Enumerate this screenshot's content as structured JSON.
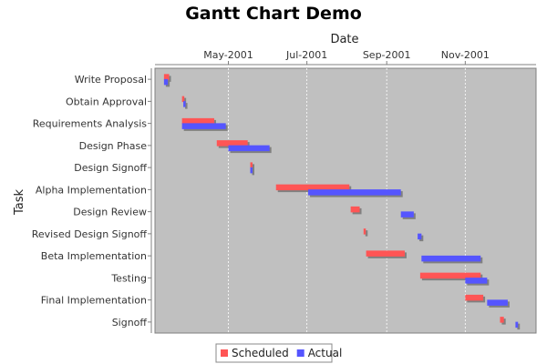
{
  "chart_data": {
    "type": "gantt",
    "title": "Gantt Chart Demo",
    "xlabel": "Date",
    "ylabel": "Task",
    "x_ticks": [
      "2001-05-01",
      "2001-07-01",
      "2001-09-01",
      "2001-11-01"
    ],
    "x_tick_labels": [
      "May-2001",
      "Jul-2001",
      "Sep-2001",
      "Nov-2001"
    ],
    "xlim": [
      "2001-03-05",
      "2001-12-26"
    ],
    "grid": true,
    "legend_position": "bottom",
    "colors": {
      "plot_background": "#c0c0c0",
      "gridline": "#ffffff",
      "scheduled": "#ff5555",
      "actual": "#5555ff",
      "shadow": "#808080"
    },
    "tasks": [
      "Write Proposal",
      "Obtain Approval",
      "Requirements Analysis",
      "Design Phase",
      "Design Signoff",
      "Alpha Implementation",
      "Design Review",
      "Revised Design Signoff",
      "Beta Implementation",
      "Testing",
      "Final Implementation",
      "Signoff"
    ],
    "series": [
      {
        "name": "Scheduled",
        "color": "#ff5555",
        "intervals": [
          [
            "2001-03-12",
            "2001-03-16"
          ],
          [
            "2001-03-26",
            "2001-03-27"
          ],
          [
            "2001-03-26",
            "2001-04-20"
          ],
          [
            "2001-04-22",
            "2001-05-16"
          ],
          [
            "2001-05-18",
            "2001-05-19"
          ],
          [
            "2001-06-07",
            "2001-08-03"
          ],
          [
            "2001-08-04",
            "2001-08-11"
          ],
          [
            "2001-08-14",
            "2001-08-15"
          ],
          [
            "2001-08-16",
            "2001-09-15"
          ],
          [
            "2001-09-27",
            "2001-11-13"
          ],
          [
            "2001-11-01",
            "2001-11-15"
          ],
          [
            "2001-11-28",
            "2001-12-01"
          ]
        ]
      },
      {
        "name": "Actual",
        "color": "#5555ff",
        "intervals": [
          [
            "2001-03-12",
            "2001-03-15"
          ],
          [
            "2001-03-27",
            "2001-03-28"
          ],
          [
            "2001-03-26",
            "2001-04-29"
          ],
          [
            "2001-05-01",
            "2001-06-02"
          ],
          [
            "2001-05-18",
            "2001-05-19"
          ],
          [
            "2001-07-02",
            "2001-09-12"
          ],
          [
            "2001-09-12",
            "2001-09-22"
          ],
          [
            "2001-09-25",
            "2001-09-28"
          ],
          [
            "2001-09-28",
            "2001-11-13"
          ],
          [
            "2001-11-01",
            "2001-11-18"
          ],
          [
            "2001-11-18",
            "2001-12-04"
          ],
          [
            "2001-12-10",
            "2001-12-12"
          ]
        ]
      }
    ]
  }
}
